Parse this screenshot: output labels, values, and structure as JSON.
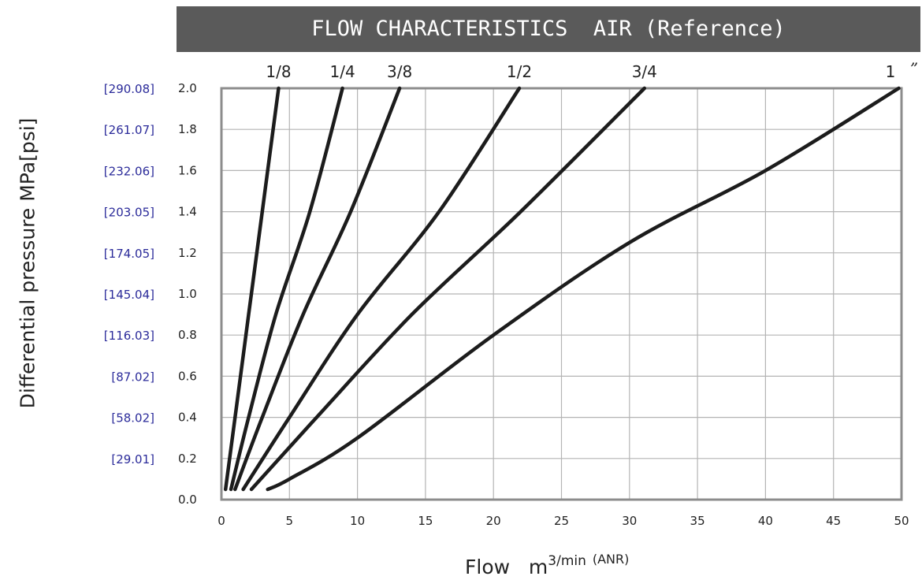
{
  "chart_data": {
    "type": "line",
    "title": "FLOW CHARACTERISTICS  AIR (Reference)",
    "xlabel": "Flow",
    "xlabel_unit_base": "m",
    "xlabel_unit_sup": "3/min",
    "xlabel_unit_note": "(ANR)",
    "ylabel": "Differential pressure MPa[psi]",
    "xlim": [
      0,
      50
    ],
    "ylim": [
      0,
      2.0
    ],
    "grid": true,
    "x_ticks": [
      "0",
      "5",
      "10",
      "15",
      "20",
      "25",
      "30",
      "35",
      "40",
      "45",
      "50"
    ],
    "y_ticks": [
      "0.0",
      "0.2",
      "0.4",
      "0.6",
      "0.8",
      "1.0",
      "1.2",
      "1.4",
      "1.6",
      "1.8",
      "2.0"
    ],
    "y_ticks_psi": [
      "",
      "[29.01]",
      "[58.02]",
      "[87.02]",
      "[116.03]",
      "[145.04]",
      "[174.05]",
      "[203.05]",
      "[232.06]",
      "[261.07]",
      "[290.08]"
    ],
    "series": [
      {
        "name": "1/8",
        "points": [
          [
            0.3,
            0.05
          ],
          [
            1.0,
            0.4
          ],
          [
            2.0,
            0.9
          ],
          [
            3.0,
            1.4
          ],
          [
            4.2,
            2.0
          ]
        ]
      },
      {
        "name": "1/4",
        "points": [
          [
            0.7,
            0.05
          ],
          [
            2.0,
            0.4
          ],
          [
            4.0,
            0.9
          ],
          [
            6.5,
            1.4
          ],
          [
            8.9,
            2.0
          ]
        ]
      },
      {
        "name": "3/8",
        "points": [
          [
            1.0,
            0.05
          ],
          [
            3.0,
            0.4
          ],
          [
            6.0,
            0.9
          ],
          [
            9.5,
            1.4
          ],
          [
            13.1,
            2.0
          ]
        ]
      },
      {
        "name": "1/2",
        "points": [
          [
            1.6,
            0.05
          ],
          [
            5.0,
            0.4
          ],
          [
            10.0,
            0.9
          ],
          [
            16.0,
            1.4
          ],
          [
            21.9,
            2.0
          ]
        ]
      },
      {
        "name": "3/4",
        "points": [
          [
            2.2,
            0.05
          ],
          [
            7.0,
            0.4
          ],
          [
            14.0,
            0.9
          ],
          [
            22.0,
            1.4
          ],
          [
            31.1,
            2.0
          ]
        ]
      },
      {
        "name": "1",
        "points": [
          [
            3.4,
            0.05
          ],
          [
            5.0,
            0.1
          ],
          [
            10.0,
            0.3
          ],
          [
            20.0,
            0.8
          ],
          [
            30.0,
            1.25
          ],
          [
            40.0,
            1.6
          ],
          [
            49.8,
            2.0
          ]
        ]
      }
    ],
    "series_end_mark": "”"
  }
}
